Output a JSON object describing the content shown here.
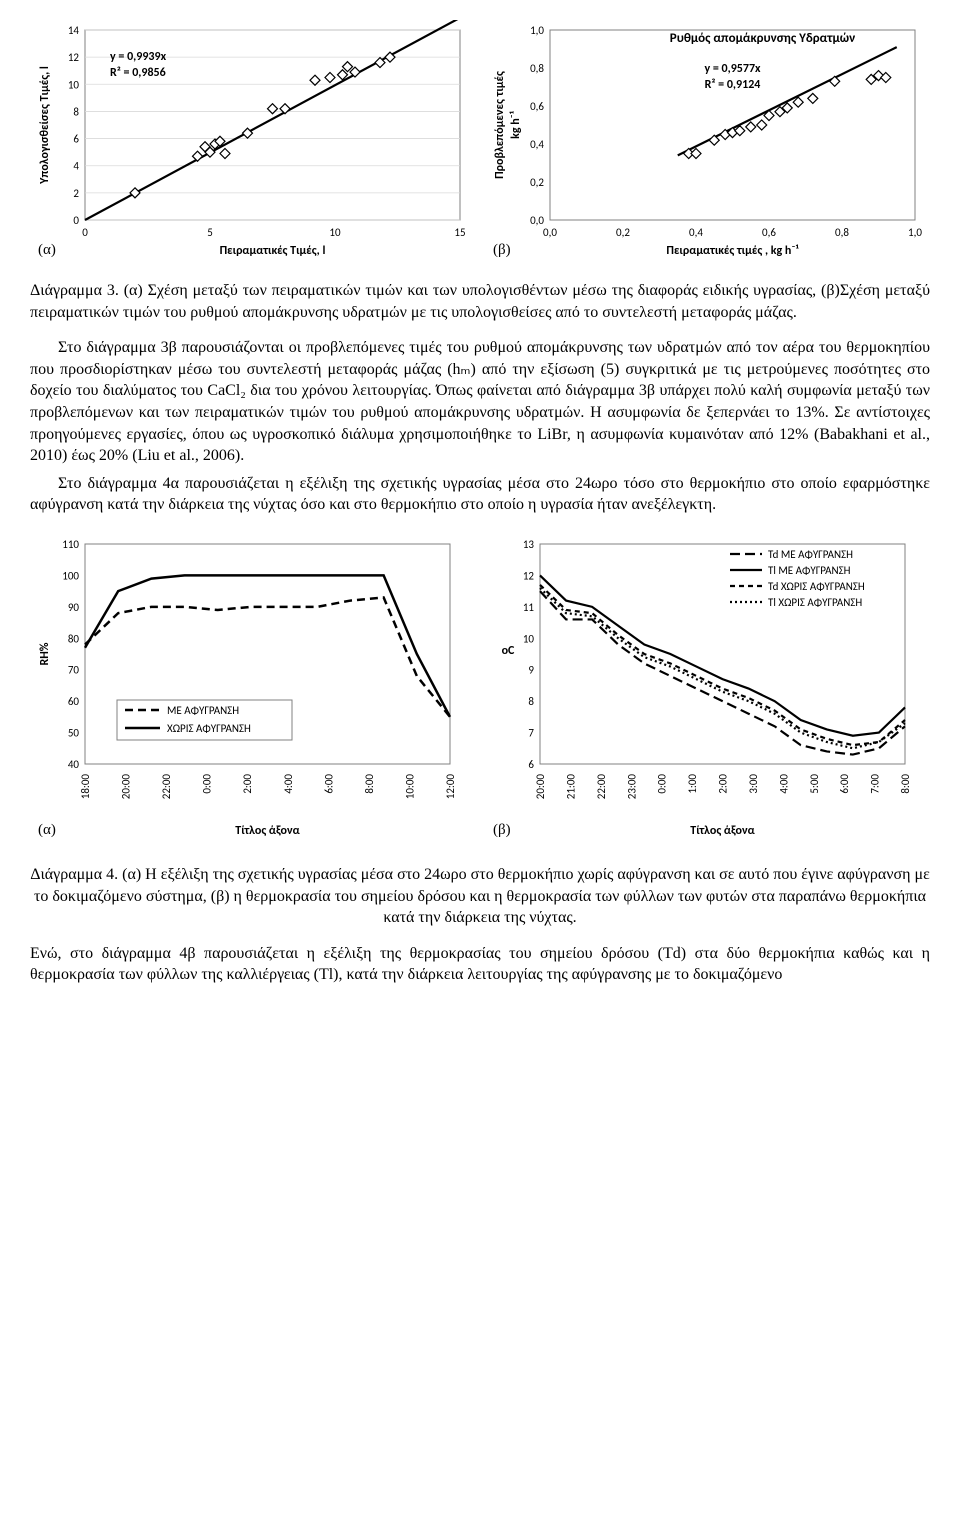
{
  "chart3a": {
    "type": "scatter-with-fit",
    "panel_letter": "(α)",
    "xlabel": "Πειραματικές Τιμές, l",
    "ylabel": "Υπολογισθείσες Τιμές, l",
    "eq_line1": "y = 0,9939x",
    "eq_line2": "R² = 0,9856",
    "xlim": [
      0,
      15
    ],
    "xtick_step": 5,
    "ylim": [
      0,
      14
    ],
    "ytick_step": 2,
    "points": [
      [
        2.0,
        2.0
      ],
      [
        4.5,
        4.7
      ],
      [
        4.8,
        5.4
      ],
      [
        5.0,
        5.0
      ],
      [
        5.2,
        5.6
      ],
      [
        5.4,
        5.8
      ],
      [
        5.6,
        4.9
      ],
      [
        6.5,
        6.4
      ],
      [
        7.5,
        8.2
      ],
      [
        8.0,
        8.2
      ],
      [
        9.2,
        10.3
      ],
      [
        9.8,
        10.5
      ],
      [
        10.3,
        10.7
      ],
      [
        10.8,
        10.9
      ],
      [
        10.5,
        11.3
      ],
      [
        11.8,
        11.6
      ],
      [
        12.2,
        12.0
      ]
    ],
    "fit": [
      [
        0,
        0
      ],
      [
        15,
        14.9
      ]
    ],
    "marker_stroke": "#000",
    "marker_fill": "#fff",
    "axis_color": "#808080",
    "grid_color": "#d9d9d9"
  },
  "chart3b": {
    "type": "scatter-with-fit",
    "panel_letter": "(β)",
    "title": "Ρυθμός απομάκρυνσης Υδρατμών",
    "xlabel": "Πειραματικές τιμές , kg h⁻¹",
    "ylabel_line1": "Προβλεπόμενες τιμές",
    "ylabel_line2": "kg h⁻¹",
    "eq_line1": "y = 0,9577x",
    "eq_line2": "R² = 0,9124",
    "xlim": [
      0.0,
      1.0
    ],
    "xtick_step": 0.2,
    "ylim": [
      0.0,
      1.0
    ],
    "ytick_step": 0.2,
    "points": [
      [
        0.38,
        0.35
      ],
      [
        0.4,
        0.35
      ],
      [
        0.45,
        0.42
      ],
      [
        0.48,
        0.45
      ],
      [
        0.5,
        0.46
      ],
      [
        0.52,
        0.47
      ],
      [
        0.55,
        0.49
      ],
      [
        0.58,
        0.5
      ],
      [
        0.6,
        0.55
      ],
      [
        0.63,
        0.57
      ],
      [
        0.65,
        0.59
      ],
      [
        0.68,
        0.62
      ],
      [
        0.72,
        0.64
      ],
      [
        0.78,
        0.73
      ],
      [
        0.88,
        0.74
      ],
      [
        0.9,
        0.76
      ],
      [
        0.92,
        0.75
      ]
    ],
    "fit": [
      [
        0.35,
        0.34
      ],
      [
        0.95,
        0.91
      ]
    ],
    "marker_stroke": "#000",
    "marker_fill": "#fff",
    "axis_color": "#808080"
  },
  "caption3_label": "Διάγραμμα 3.",
  "caption3_text": " (α)  Σχέση μεταξύ των πειραματικών τιμών και των υπολογισθέντων μέσω της διαφοράς ειδικής υγρασίας, (β)Σχέση μεταξύ πειραματικών τιμών του ρυθμού απομάκρυνσης υδρατμών με τις υπολογισθείσες από το συντελεστή μεταφοράς μάζας.",
  "para1": "Στο διάγραμμα 3β παρουσιάζονται οι προβλεπόμενες τιμές του ρυθμού απομάκρυνσης των υδρατμών από τον αέρα του θερμοκηπίου που προσδιορίστηκαν μέσω του συντελεστή μεταφοράς μάζας (hₘ) από την εξίσωση (5) συγκριτικά με τις μετρούμενες ποσότητες στο δοχείο του διαλύματος του CaCl₂ δια του χρόνου λειτουργίας. Όπως φαίνεται από διάγραμμα 3β υπάρχει πολύ καλή συμφωνία μεταξύ των προβλεπόμενων και των πειραματικών τιμών του ρυθμού απομάκρυνσης υδρατμών. Η ασυμφωνία δε ξεπερνάει το 13%. Σε αντίστοιχες προηγούμενες εργασίες, όπου ως υγροσκοπικό διάλυμα χρησιμοποιήθηκε το LiBr, η ασυμφωνία κυμαινόταν από 12% (Babakhani et al., 2010) έως 20% (Liu et al., 2006).",
  "para2": "Στο διάγραμμα 4α παρουσιάζεται η εξέλιξη της σχετικής υγρασίας μέσα στο 24ωρο τόσο στο θερμοκήπιο στο οποίο εφαρμόστηκε αφύγρανση κατά την διάρκεια της νύχτας όσο και στο θερμοκήπιο στο οποίο η υγρασία ήταν ανεξέλεγκτη.",
  "chart4a": {
    "type": "line",
    "panel_letter": "(α)",
    "ylabel": "RH%",
    "xlabel": "Τίτλος άξονα",
    "ylim": [
      40,
      110
    ],
    "ytick_step": 10,
    "xticks": [
      "18:00",
      "20:00",
      "22:00",
      "0:00",
      "2:00",
      "4:00",
      "6:00",
      "8:00",
      "10:00",
      "12:00"
    ],
    "legend": [
      {
        "label": "ΜΕ ΑΦΥΓΡΑΝΣΗ",
        "dash": "8,5",
        "width": 2.5
      },
      {
        "label": "ΧΩΡΙΣ ΑΦΥΓΡΑΝΣΗ",
        "dash": "",
        "width": 2.5
      }
    ],
    "series_with": [
      78,
      88,
      90,
      90,
      89,
      90,
      90,
      90,
      92,
      93,
      68,
      55
    ],
    "series_without": [
      77,
      95,
      99,
      100,
      100,
      100,
      100,
      100,
      100,
      100,
      75,
      55
    ],
    "axis_color": "#808080"
  },
  "chart4b": {
    "type": "line",
    "panel_letter": "(β)",
    "ylabel": "oC",
    "xlabel": "Τίτλος άξονα",
    "ylim": [
      6,
      13
    ],
    "ytick_step": 1,
    "xticks": [
      "20:00",
      "21:00",
      "22:00",
      "23:00",
      "0:00",
      "1:00",
      "2:00",
      "3:00",
      "4:00",
      "5:00",
      "6:00",
      "7:00",
      "8:00"
    ],
    "legend": [
      {
        "label": "Td ΜΕ ΑΦΥΓΡΑΝΣΗ",
        "dash": "10,5",
        "width": 2.5
      },
      {
        "label": "Tl ΜΕ ΑΦΥΓΡΑΝΣΗ",
        "dash": "",
        "width": 2.5
      },
      {
        "label": "Td ΧΩΡΙΣ ΑΦΥΓΡΑΝΣΗ",
        "dash": "5,4",
        "width": 2.5
      },
      {
        "label": "Tl ΧΩΡΙΣ ΑΦΥΓΡΑΝΣΗ",
        "dash": "2,3",
        "width": 2.5
      }
    ],
    "s_td_with": [
      11.5,
      10.6,
      10.6,
      9.8,
      9.2,
      8.8,
      8.4,
      8.0,
      7.6,
      7.2,
      6.6,
      6.4,
      6.3,
      6.5,
      7.2
    ],
    "s_tl_with": [
      12.0,
      11.2,
      11.0,
      10.4,
      9.8,
      9.5,
      9.1,
      8.7,
      8.4,
      8.0,
      7.4,
      7.1,
      6.9,
      7.0,
      7.8
    ],
    "s_td_without": [
      11.7,
      10.9,
      10.8,
      10.1,
      9.5,
      9.2,
      8.8,
      8.4,
      8.1,
      7.7,
      7.1,
      6.8,
      6.6,
      6.7,
      7.4
    ],
    "s_tl_without": [
      11.6,
      10.8,
      10.7,
      10.0,
      9.4,
      9.1,
      8.7,
      8.3,
      8.0,
      7.6,
      7.0,
      6.7,
      6.5,
      6.7,
      7.3
    ],
    "axis_color": "#808080"
  },
  "caption4_label": "Διάγραμμα 4.",
  "caption4_text": " (α) Η εξέλιξη της σχετικής υγρασίας μέσα στο 24ωρο στο θερμοκήπιο χωρίς αφύγρανση και σε αυτό που έγινε αφύγρανση με το δοκιμαζόμενο σύστημα, (β) η θερμοκρασία του σημείου δρόσου και η θερμοκρασία των φύλλων των φυτών στα παραπάνω θερμοκήπια κατά την διάρκεια της νύχτας.",
  "para3": "Ενώ, στο διάγραμμα 4β παρουσιάζεται η εξέλιξη της θερμοκρασίας του σημείου δρόσου (Td) στα δύο θερμοκήπια καθώς και η θερμοκρασία των φύλλων της καλλιέργειας (Tl), κατά την διάρκεια λειτουργίας της αφύγρανσης με το δοκιμαζόμενο"
}
